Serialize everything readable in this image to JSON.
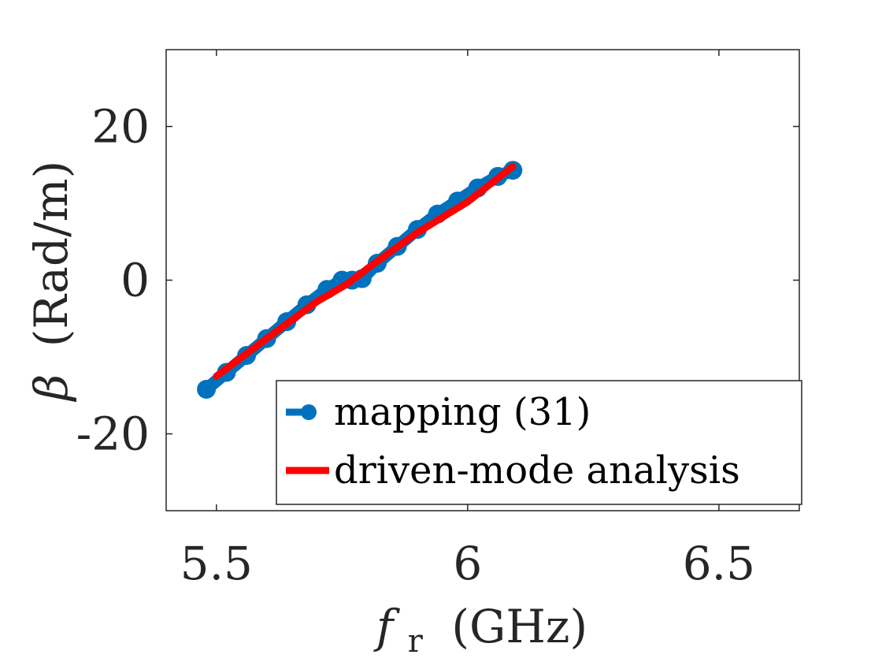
{
  "chart_data": {
    "type": "line",
    "title": "",
    "xlabel_symbol": "f",
    "xlabel_subscript": "r",
    "xlabel_unit": "(GHz)",
    "ylabel_symbol": "β",
    "ylabel_unit": "(Rad/m)",
    "xlim": [
      5.4,
      6.66
    ],
    "ylim": [
      -30,
      30
    ],
    "xticks": [
      5.5,
      6,
      6.5
    ],
    "xtick_labels": [
      "5.5",
      "6",
      "6.5"
    ],
    "yticks": [
      20,
      0,
      -20
    ],
    "ytick_labels": [
      "20",
      "0",
      "-20"
    ],
    "grid": false,
    "legend_position": "bottom-right",
    "series": [
      {
        "name": "mapping (31)",
        "color": "#0072BD",
        "marker": "circle",
        "x": [
          5.48,
          5.52,
          5.56,
          5.6,
          5.64,
          5.68,
          5.72,
          5.75,
          5.77,
          5.79,
          5.82,
          5.86,
          5.9,
          5.94,
          5.98,
          6.02,
          6.06,
          6.09
        ],
        "y": [
          -14.2,
          -12.0,
          -9.8,
          -7.6,
          -5.4,
          -3.2,
          -1.2,
          0.0,
          0.0,
          0.2,
          2.2,
          4.4,
          6.6,
          8.6,
          10.3,
          12.0,
          13.5,
          14.3
        ]
      },
      {
        "name": "driven-mode analysis",
        "color": "#FF0000",
        "marker": "none",
        "x": [
          5.5,
          5.6,
          5.7,
          5.76,
          5.8,
          5.9,
          6.0,
          6.09
        ],
        "y": [
          -12.5,
          -7.6,
          -2.8,
          -0.5,
          1.5,
          6.2,
          10.2,
          14.8
        ]
      }
    ]
  }
}
